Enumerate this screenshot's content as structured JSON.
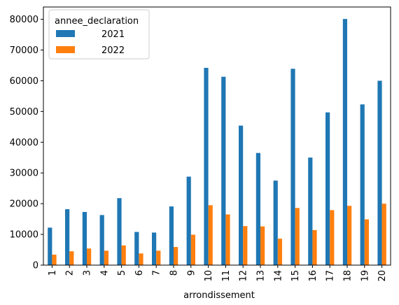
{
  "chart_data": {
    "type": "bar",
    "xlabel": "arrondissement",
    "ylabel": "",
    "ylim": [
      0,
      84000
    ],
    "yticks": [
      0,
      10000,
      20000,
      30000,
      40000,
      50000,
      60000,
      70000,
      80000
    ],
    "categories": [
      "1",
      "2",
      "3",
      "4",
      "5",
      "6",
      "7",
      "8",
      "9",
      "10",
      "11",
      "12",
      "13",
      "14",
      "15",
      "16",
      "17",
      "18",
      "19",
      "20"
    ],
    "legend": {
      "title": "annee_declaration",
      "position": "top-left"
    },
    "series": [
      {
        "name": "2021",
        "color": "#1f77b4",
        "values": [
          12200,
          18200,
          17300,
          16300,
          21800,
          10800,
          10600,
          19100,
          28800,
          64200,
          61300,
          45400,
          36500,
          27500,
          63900,
          35000,
          49700,
          80100,
          52300,
          60000
        ]
      },
      {
        "name": "2022",
        "color": "#ff7f0e",
        "values": [
          3400,
          4500,
          5400,
          4700,
          6400,
          3800,
          4700,
          5900,
          9900,
          19500,
          16500,
          12700,
          12600,
          8600,
          18600,
          11400,
          17900,
          19300,
          14900,
          20000
        ]
      }
    ]
  }
}
